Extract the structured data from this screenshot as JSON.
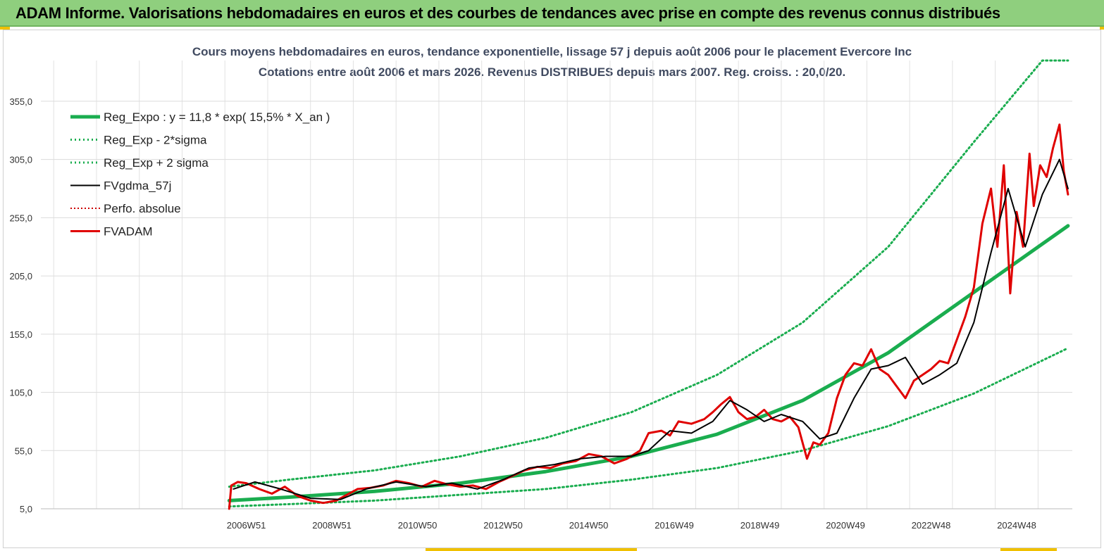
{
  "banner": {
    "title": "ADAM Informe. Valorisations hebdomadaires en euros et des courbes de tendances avec prise en compte des revenus connus distribués"
  },
  "colors": {
    "banner_bg": "#8fcf7e",
    "reg_expo": "#1aad4f",
    "band": "#1aad4f",
    "fvgdma": "#000000",
    "perfo": "#cc0000",
    "fvadam": "#e00000"
  },
  "chart_data": {
    "type": "line",
    "title": "Cours moyens hebdomadaires en euros, tendance exponentielle, lissage 57 j depuis août 2006 pour le placement Evercore Inc",
    "subtitle": "Cotations entre août 2006 et mars 2026. Revenus DISTRIBUES depuis mars 2007. Reg. croiss. : 20,0/20.",
    "xlabel": "",
    "ylabel": "",
    "ylim": [
      5,
      390
    ],
    "xlim": [
      2002.2,
      2026.3
    ],
    "y_ticks": [
      "5,0",
      "55,0",
      "105,0",
      "155,0",
      "205,0",
      "255,0",
      "305,0",
      "355,0"
    ],
    "y_tick_values": [
      5,
      55,
      105,
      155,
      205,
      255,
      305,
      355
    ],
    "x_ticks": [
      "2006W51",
      "2008W51",
      "2010W50",
      "2012W50",
      "2014W50",
      "2016W49",
      "2018W49",
      "2020W49",
      "2022W48",
      "2024W48"
    ],
    "x_tick_values": [
      2007.0,
      2009.0,
      2011.0,
      2013.0,
      2015.0,
      2017.0,
      2019.0,
      2021.0,
      2023.0,
      2025.0
    ],
    "grid": true,
    "legend_position": "top-left",
    "series": [
      {
        "name": "Reg_Expo : y = 11,8 * exp( 15,5% *  X_an )",
        "style": "solid-thick",
        "x": [
          2006.6,
          2008,
          2010,
          2012,
          2014,
          2016,
          2018,
          2020,
          2022,
          2024,
          2026.2
        ],
        "values": [
          12,
          15,
          20,
          27,
          37,
          50,
          69,
          98,
          139,
          191,
          248
        ]
      },
      {
        "name": "Reg_Exp - 2*sigma",
        "style": "dotted",
        "x": [
          2006.6,
          2008,
          2010,
          2012,
          2014,
          2016,
          2018,
          2020,
          2022,
          2024,
          2026.2
        ],
        "values": [
          7,
          9,
          12,
          17,
          22,
          30,
          40,
          55,
          76,
          104,
          143
        ]
      },
      {
        "name": "Reg_Exp + 2 sigma",
        "style": "dotted",
        "x": [
          2006.6,
          2008,
          2010,
          2012,
          2014,
          2016,
          2018,
          2020,
          2022,
          2024,
          2025.6,
          2026.2
        ],
        "values": [
          24,
          30,
          38,
          50,
          66,
          88,
          120,
          165,
          230,
          320,
          390,
          390
        ]
      },
      {
        "name": "FVgdma_57j",
        "style": "solid",
        "x": [
          2006.7,
          2007.2,
          2007.8,
          2008.5,
          2009.2,
          2009.8,
          2010.5,
          2011.2,
          2011.8,
          2012.4,
          2013.0,
          2013.6,
          2014.2,
          2014.8,
          2015.4,
          2016.0,
          2016.4,
          2016.9,
          2017.4,
          2017.9,
          2018.3,
          2018.7,
          2019.1,
          2019.5,
          2020.0,
          2020.4,
          2020.8,
          2021.2,
          2021.6,
          2022.0,
          2022.4,
          2022.8,
          2023.2,
          2023.6,
          2024.0,
          2024.4,
          2024.8,
          2025.2,
          2025.6,
          2026.0,
          2026.2
        ],
        "values": [
          22,
          28,
          22,
          14,
          13,
          22,
          28,
          24,
          27,
          22,
          30,
          40,
          43,
          48,
          50,
          50,
          55,
          72,
          70,
          80,
          98,
          90,
          80,
          86,
          80,
          65,
          70,
          100,
          125,
          128,
          135,
          112,
          120,
          130,
          165,
          225,
          280,
          230,
          275,
          305,
          280
        ]
      },
      {
        "name": "Perfo. absolue",
        "style": "dotted",
        "x": [],
        "values": []
      },
      {
        "name": "FVADAM",
        "style": "solid-thick",
        "x": [
          2006.6,
          2006.65,
          2006.8,
          2007.0,
          2007.3,
          2007.6,
          2007.9,
          2008.2,
          2008.5,
          2008.8,
          2009.1,
          2009.3,
          2009.6,
          2009.9,
          2010.2,
          2010.5,
          2010.8,
          2011.1,
          2011.4,
          2011.7,
          2012.0,
          2012.3,
          2012.6,
          2012.9,
          2013.2,
          2013.5,
          2013.8,
          2014.1,
          2014.4,
          2014.7,
          2015.0,
          2015.3,
          2015.6,
          2015.9,
          2016.2,
          2016.4,
          2016.7,
          2016.9,
          2017.1,
          2017.4,
          2017.7,
          2017.9,
          2018.1,
          2018.3,
          2018.5,
          2018.7,
          2018.9,
          2019.1,
          2019.3,
          2019.5,
          2019.7,
          2019.9,
          2020.1,
          2020.25,
          2020.4,
          2020.6,
          2020.8,
          2021.0,
          2021.2,
          2021.4,
          2021.6,
          2021.8,
          2022.0,
          2022.2,
          2022.4,
          2022.6,
          2022.8,
          2023.0,
          2023.2,
          2023.4,
          2023.6,
          2023.8,
          2024.0,
          2024.2,
          2024.4,
          2024.55,
          2024.7,
          2024.85,
          2025.0,
          2025.15,
          2025.3,
          2025.4,
          2025.55,
          2025.7,
          2025.85,
          2026.0,
          2026.1,
          2026.2
        ],
        "values": [
          5,
          25,
          28,
          27,
          22,
          18,
          24,
          16,
          12,
          10,
          12,
          16,
          22,
          23,
          25,
          29,
          27,
          24,
          29,
          26,
          24,
          25,
          22,
          28,
          33,
          38,
          41,
          40,
          44,
          46,
          52,
          50,
          44,
          48,
          55,
          70,
          72,
          68,
          80,
          78,
          82,
          88,
          95,
          101,
          88,
          82,
          84,
          90,
          82,
          80,
          84,
          75,
          48,
          62,
          60,
          70,
          100,
          120,
          130,
          128,
          142,
          125,
          120,
          110,
          100,
          115,
          120,
          125,
          132,
          130,
          150,
          170,
          195,
          250,
          280,
          230,
          300,
          190,
          260,
          230,
          310,
          265,
          300,
          290,
          315,
          335,
          295,
          275
        ]
      }
    ]
  }
}
